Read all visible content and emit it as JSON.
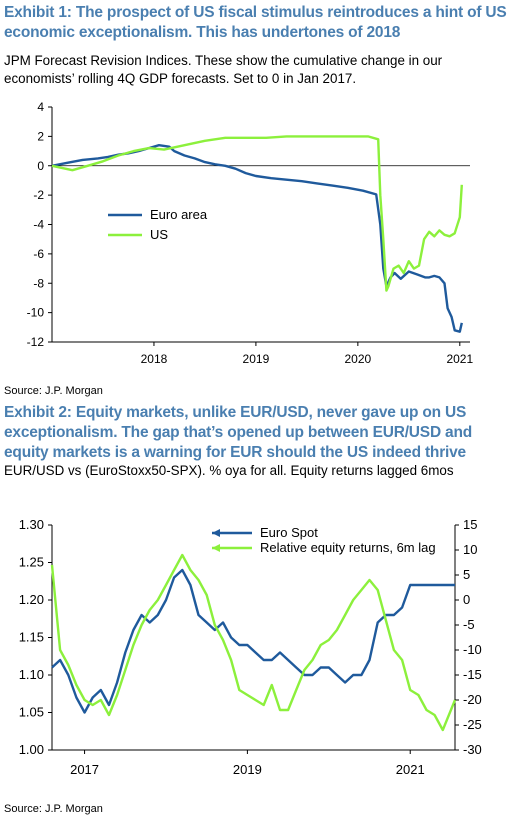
{
  "exhibit1": {
    "title": "Exhibit 1: The prospect of US fiscal stimulus reintroduces a hint of US economic exceptionalism. This has undertones of 2018",
    "subtitle": "JPM Forecast Revision Indices. These show the cumulative change in our economists’ rolling 4Q GDP forecasts. Set to 0 in Jan 2017.",
    "source": "Source: J.P. Morgan"
  },
  "exhibit2": {
    "title": "Exhibit 2: Equity markets, unlike EUR/USD, never gave up on US exceptionalism. The gap that’s opened up between EUR/USD and equity markets is a warning for EUR should the US indeed thrive",
    "subtitle": "EUR/USD vs (EuroStoxx50-SPX). % oya for all. Equity returns lagged 6mos",
    "source": "Source: J.P. Morgan"
  },
  "colors": {
    "title": "#4a7fb0",
    "euro": "#1f5a9c",
    "us": "#8cf03c",
    "grid": "#000000"
  },
  "chart_data": [
    {
      "type": "line",
      "title": "",
      "xlabel": "",
      "ylabel": "",
      "ylim": [
        -12,
        4
      ],
      "xlim": [
        2017.0,
        2021.1
      ],
      "yticks": [
        "4",
        "2",
        "0",
        "-2",
        "-4",
        "-6",
        "-8",
        "-10",
        "-12"
      ],
      "xticks": [
        "2018",
        "2019",
        "2020",
        "2021"
      ],
      "legend_position": "left-center",
      "grid": false,
      "series": [
        {
          "name": "Euro area",
          "color": "#1f5a9c",
          "x": [
            2017.0,
            2017.15,
            2017.3,
            2017.45,
            2017.55,
            2017.65,
            2017.75,
            2017.85,
            2017.95,
            2018.05,
            2018.15,
            2018.2,
            2018.3,
            2018.4,
            2018.5,
            2018.6,
            2018.7,
            2018.8,
            2018.9,
            2019.0,
            2019.15,
            2019.3,
            2019.45,
            2019.6,
            2019.75,
            2019.9,
            2020.05,
            2020.18,
            2020.22,
            2020.25,
            2020.28,
            2020.32,
            2020.36,
            2020.42,
            2020.5,
            2020.58,
            2020.66,
            2020.7,
            2020.75,
            2020.8,
            2020.85,
            2020.88,
            2020.92,
            2020.95,
            2021.0,
            2021.02
          ],
          "y": [
            0,
            0.2,
            0.4,
            0.5,
            0.6,
            0.75,
            0.85,
            1.0,
            1.2,
            1.4,
            1.3,
            1.0,
            0.7,
            0.5,
            0.25,
            0.1,
            0.0,
            -0.2,
            -0.5,
            -0.7,
            -0.85,
            -0.95,
            -1.05,
            -1.2,
            -1.35,
            -1.5,
            -1.7,
            -1.95,
            -4.0,
            -7.0,
            -8.2,
            -7.6,
            -7.3,
            -7.7,
            -7.2,
            -7.4,
            -7.6,
            -7.6,
            -7.5,
            -7.6,
            -8.0,
            -9.7,
            -10.3,
            -11.2,
            -11.3,
            -10.7
          ]
        },
        {
          "name": "US",
          "color": "#8cf03c",
          "x": [
            2017.0,
            2017.2,
            2017.35,
            2017.5,
            2017.65,
            2017.8,
            2017.95,
            2018.1,
            2018.3,
            2018.5,
            2018.7,
            2018.9,
            2019.1,
            2019.3,
            2019.5,
            2019.7,
            2019.9,
            2020.1,
            2020.2,
            2020.22,
            2020.25,
            2020.28,
            2020.3,
            2020.35,
            2020.4,
            2020.45,
            2020.5,
            2020.55,
            2020.6,
            2020.65,
            2020.7,
            2020.75,
            2020.8,
            2020.85,
            2020.9,
            2020.95,
            2021.0,
            2021.02
          ],
          "y": [
            0,
            -0.3,
            0.0,
            0.3,
            0.7,
            1.0,
            1.2,
            1.1,
            1.4,
            1.7,
            1.9,
            1.9,
            1.9,
            2.0,
            2.0,
            2.0,
            2.0,
            2.0,
            1.8,
            -2.0,
            -5.0,
            -8.5,
            -8.2,
            -7.0,
            -6.8,
            -7.3,
            -6.5,
            -7.0,
            -6.8,
            -5.0,
            -4.5,
            -4.8,
            -4.4,
            -4.7,
            -4.8,
            -4.6,
            -3.5,
            -1.3
          ]
        }
      ]
    },
    {
      "type": "line",
      "title": "",
      "xlabel": "",
      "ylabel": "",
      "xlim": [
        2016.6,
        2021.55
      ],
      "ylim": [
        1.0,
        1.3
      ],
      "y2lim": [
        -30,
        15
      ],
      "yticks": [
        "1.30",
        "1.25",
        "1.20",
        "1.15",
        "1.10",
        "1.05",
        "1.00"
      ],
      "y2ticks": [
        "15",
        "10",
        "5",
        "0",
        "-5",
        "-10",
        "-15",
        "-20",
        "-25",
        "-30"
      ],
      "xticks": [
        "2017",
        "2019",
        "2021"
      ],
      "legend_position": "top-center",
      "grid": false,
      "series": [
        {
          "name": "Euro Spot",
          "axis": "left",
          "color": "#1f5a9c",
          "x": [
            2016.6,
            2016.7,
            2016.8,
            2016.9,
            2017.0,
            2017.1,
            2017.2,
            2017.3,
            2017.4,
            2017.5,
            2017.6,
            2017.7,
            2017.8,
            2017.9,
            2018.0,
            2018.1,
            2018.2,
            2018.3,
            2018.4,
            2018.5,
            2018.6,
            2018.7,
            2018.8,
            2018.9,
            2019.0,
            2019.1,
            2019.2,
            2019.3,
            2019.4,
            2019.5,
            2019.6,
            2019.7,
            2019.8,
            2019.9,
            2020.0,
            2020.1,
            2020.2,
            2020.3,
            2020.4,
            2020.5,
            2020.6,
            2020.7,
            2020.8,
            2020.9,
            2021.0,
            2021.1,
            2021.2,
            2021.3,
            2021.4,
            2021.55
          ],
          "y": [
            1.11,
            1.12,
            1.1,
            1.07,
            1.05,
            1.07,
            1.08,
            1.06,
            1.09,
            1.13,
            1.16,
            1.18,
            1.17,
            1.18,
            1.2,
            1.23,
            1.24,
            1.22,
            1.18,
            1.17,
            1.16,
            1.17,
            1.15,
            1.14,
            1.14,
            1.13,
            1.12,
            1.12,
            1.13,
            1.12,
            1.11,
            1.1,
            1.1,
            1.11,
            1.11,
            1.1,
            1.09,
            1.1,
            1.1,
            1.12,
            1.17,
            1.18,
            1.18,
            1.19,
            1.22,
            1.22,
            1.22,
            1.22,
            1.22,
            1.22
          ]
        },
        {
          "name": "Relative equity returns, 6m lag",
          "axis": "right",
          "color": "#8cf03c",
          "x": [
            2016.6,
            2016.7,
            2016.8,
            2016.9,
            2017.0,
            2017.1,
            2017.2,
            2017.3,
            2017.4,
            2017.5,
            2017.6,
            2017.7,
            2017.8,
            2017.9,
            2018.0,
            2018.1,
            2018.2,
            2018.3,
            2018.4,
            2018.5,
            2018.6,
            2018.7,
            2018.8,
            2018.9,
            2019.0,
            2019.1,
            2019.2,
            2019.3,
            2019.4,
            2019.5,
            2019.6,
            2019.7,
            2019.8,
            2019.9,
            2020.0,
            2020.1,
            2020.2,
            2020.3,
            2020.4,
            2020.5,
            2020.6,
            2020.7,
            2020.8,
            2020.9,
            2021.0,
            2021.1,
            2021.2,
            2021.3,
            2021.4,
            2021.55
          ],
          "y": [
            7,
            -10,
            -13,
            -17,
            -20,
            -21,
            -20,
            -23,
            -19,
            -14,
            -9,
            -5,
            -2,
            0,
            3,
            6,
            9,
            6,
            4,
            1,
            -5,
            -8,
            -12,
            -18,
            -19,
            -20,
            -21,
            -17,
            -22,
            -22,
            -18,
            -14,
            -12,
            -9,
            -8,
            -6,
            -3,
            0,
            2,
            4,
            2,
            -4,
            -10,
            -12,
            -18,
            -19,
            -22,
            -23,
            -26,
            -20
          ]
        }
      ]
    }
  ]
}
